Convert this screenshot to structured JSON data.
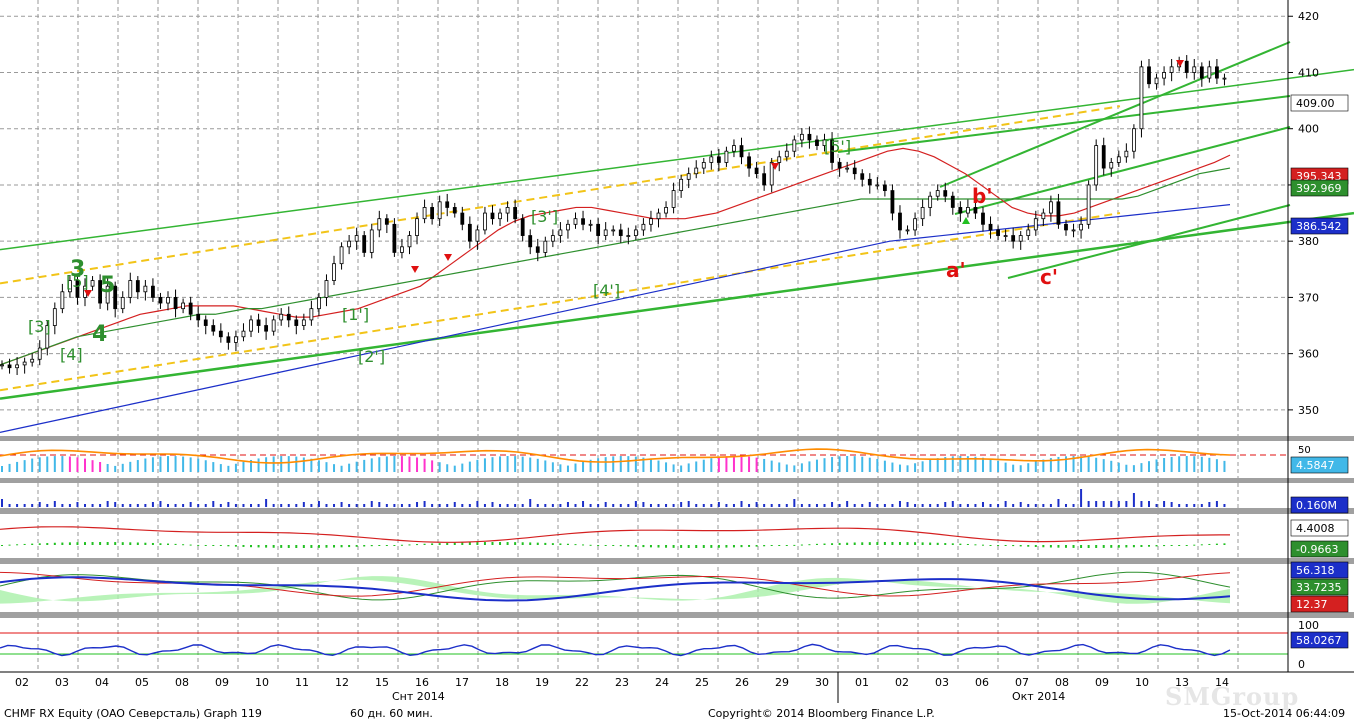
{
  "footer": {
    "instrument": "CHMF RX Equity (OAO Северсталь) Graph 119",
    "period": "60 дн. 60 мин.",
    "copyright": "Copyright© 2014 Bloomberg Finance L.P.",
    "datetime": "15-Oct-2014 06:44:09"
  },
  "watermark": "SMGroup",
  "colors": {
    "candle": "#000000",
    "ma_fast": "#d42020",
    "ma_mid": "#2e8f2e",
    "ma_slow": "#1c2fc9",
    "channel": "#33b533",
    "dashed": "#f2c418",
    "rsi_line": "#ff8c00",
    "rsi_hist": "#41b8e8",
    "rsi_hot": "#ff33cc",
    "volume": "#1c2fc9",
    "dmi_pos": "#a8f0a8",
    "dmi_neg": "#f4b6b6"
  },
  "chart_data": {
    "type": "candlestick",
    "panels": [
      {
        "name": "price",
        "ylim": [
          345,
          422
        ],
        "yticks": [
          350,
          360,
          370,
          380,
          390,
          400,
          410,
          420
        ],
        "last_value_tags": [
          {
            "value": "409.00",
            "bg": "#ffffff",
            "fg": "#000000"
          },
          {
            "value": "395.343",
            "bg": "#d42020",
            "fg": "#ffffff"
          },
          {
            "value": "392.969",
            "bg": "#2e8f2e",
            "fg": "#ffffff"
          },
          {
            "value": "386.542",
            "bg": "#1c2fc9",
            "fg": "#ffffff"
          }
        ],
        "close_path": [
          358,
          357.5,
          358,
          358.5,
          359,
          361,
          365,
          368,
          371,
          373,
          370,
          372,
          373,
          369,
          372,
          368,
          370,
          373,
          371,
          372,
          370,
          369,
          370,
          368,
          369,
          367,
          366,
          365,
          364,
          363,
          362,
          363,
          364,
          366,
          365,
          364,
          366,
          367,
          366,
          365,
          366,
          368,
          370,
          373,
          376,
          379,
          380,
          381,
          378,
          382,
          384,
          383,
          378,
          379,
          381,
          384,
          386,
          384,
          387,
          386,
          385,
          383,
          380,
          382,
          385,
          384,
          385,
          386,
          384,
          381,
          379,
          378,
          380,
          381,
          382,
          383,
          384,
          383,
          383,
          381,
          382,
          382,
          381,
          381,
          382,
          383,
          384,
          385,
          386,
          389,
          391,
          392,
          393,
          394,
          395,
          394,
          396,
          397,
          395,
          393,
          392,
          390,
          394,
          395,
          396,
          398,
          399,
          398,
          397,
          398,
          394,
          393,
          393,
          392,
          391,
          390,
          390,
          389,
          385,
          382,
          382,
          384,
          386,
          388,
          389,
          388,
          386,
          385,
          386,
          385,
          383,
          382,
          381,
          381,
          380,
          381,
          382,
          384,
          385,
          387,
          383,
          382,
          382,
          383,
          390,
          397,
          393,
          394,
          395,
          396,
          400,
          411,
          408,
          409,
          410,
          411,
          412,
          410,
          411,
          409,
          411,
          409,
          409
        ],
        "moving_averages": [
          {
            "name": "MA fast",
            "color": "#d42020",
            "values": [
              358,
              359,
              360,
              361,
              362,
              363,
              364,
              365,
              366,
              367,
              367.5,
              368,
              368.5,
              368.5,
              368.5,
              368.5,
              368,
              367.5,
              367,
              366.5,
              366.5,
              367,
              367.5,
              368,
              369,
              370,
              371,
              372,
              374,
              376,
              378,
              380,
              382,
              383.5,
              384.5,
              385,
              385.5,
              386,
              386,
              385.5,
              385,
              384.5,
              384,
              384,
              384,
              384.5,
              385,
              386,
              387,
              388,
              389,
              390,
              391,
              392,
              393,
              394,
              395,
              396,
              396.5,
              396,
              395,
              393.5,
              392,
              390,
              388,
              386,
              385,
              384.5,
              384.5,
              385,
              386,
              387,
              388,
              389,
              390,
              391,
              392,
              393,
              394,
              395.3
            ]
          },
          {
            "name": "MA mid",
            "color": "#2e8f2e",
            "values": [
              358,
              359,
              360,
              361,
              362,
              363,
              363.5,
              364,
              364.5,
              365,
              365.5,
              366,
              366.5,
              367,
              367,
              367.5,
              368,
              368,
              368.5,
              369,
              369.5,
              370,
              370.5,
              371,
              371.5,
              372,
              372.5,
              373,
              373.5,
              374,
              374.5,
              375,
              375.5,
              376,
              376.5,
              377,
              377.5,
              378,
              378.5,
              379,
              379.5,
              380,
              380.5,
              381,
              381.5,
              382,
              382.5,
              383,
              383.5,
              384,
              384.5,
              385,
              385.5,
              386,
              386.5,
              387,
              387.5,
              387.5,
              387.5,
              387.5,
              387.5,
              387.5,
              387.5,
              387.5,
              387.5,
              387.5,
              387.5,
              387.5,
              387.5,
              387.5,
              387.5,
              387.5,
              387.5,
              387.5,
              388,
              389,
              390,
              391,
              392,
              392.5,
              393
            ]
          },
          {
            "name": "MA slow",
            "color": "#1c2fc9",
            "values": [
              346,
              347,
              348,
              349,
              350,
              351,
              352,
              353,
              354,
              355,
              356,
              357,
              358,
              359,
              360,
              361,
              362,
              363,
              364,
              365,
              366,
              367,
              368,
              369,
              370,
              371,
              372,
              373,
              374,
              375,
              376,
              377,
              378,
              379,
              380,
              380.5,
              381,
              381.5,
              382,
              382.5,
              383,
              383.5,
              384,
              384.5,
              385,
              385.5,
              386,
              386.5
            ]
          }
        ],
        "trendlines": [
          {
            "name": "channel-upper",
            "from": [
              0,
              378.5
            ],
            "to": [
              1354,
              410.5
            ]
          },
          {
            "name": "channel-lower",
            "from": [
              0,
              352
            ],
            "to": [
              1354,
              385
            ]
          },
          {
            "name": "dashed-upper",
            "from": [
              0,
              372.5
            ],
            "to": [
              1120,
              404
            ]
          },
          {
            "name": "dashed-lower",
            "from": [
              0,
              353.5
            ],
            "to": [
              1120,
              385
            ]
          }
        ],
        "wave_labels": [
          {
            "text": "[3]",
            "color": "#2e8f2e",
            "style": "bracket"
          },
          {
            "text": "[4]",
            "color": "#2e8f2e",
            "style": "bracket"
          },
          {
            "text": "[5]",
            "color": "#2e8f2e",
            "style": "bracket"
          },
          {
            "text": "3",
            "color": "#2e8f2e",
            "style": "big"
          },
          {
            "text": "4",
            "color": "#2e8f2e",
            "style": "big"
          },
          {
            "text": "5",
            "color": "#2e8f2e",
            "style": "big"
          },
          {
            "text": "[1']",
            "color": "#2e8f2e",
            "style": "bracket"
          },
          {
            "text": "[2']",
            "color": "#2e8f2e",
            "style": "bracket"
          },
          {
            "text": "[3']",
            "color": "#2e8f2e",
            "style": "bracket"
          },
          {
            "text": "[4']",
            "color": "#2e8f2e",
            "style": "bracket"
          },
          {
            "text": "[5']",
            "color": "#2e8f2e",
            "style": "bracket"
          },
          {
            "text": "a'",
            "color": "#e01010",
            "style": "bold"
          },
          {
            "text": "b'",
            "color": "#e01010",
            "style": "bold"
          },
          {
            "text": "c'",
            "color": "#e01010",
            "style": "bold"
          }
        ]
      },
      {
        "name": "rsi",
        "tick_label": "50",
        "last_value": "4.5847",
        "value_bg": "#41b8e8"
      },
      {
        "name": "volume",
        "last_value": "0.160M",
        "value_bg": "#1c2fc9"
      },
      {
        "name": "macd",
        "values": [
          {
            "value": "4.4008",
            "bg": "#ffffff",
            "fg": "#000000"
          },
          {
            "value": "-0.9663",
            "bg": "#2e8f2e",
            "fg": "#ffffff"
          }
        ]
      },
      {
        "name": "dmi",
        "values": [
          {
            "value": "56.318",
            "bg": "#1c2fc9",
            "fg": "#ffffff"
          },
          {
            "value": "33.7235",
            "bg": "#2e8f2e",
            "fg": "#ffffff"
          },
          {
            "value": "12.37",
            "bg": "#d42020",
            "fg": "#ffffff"
          }
        ]
      },
      {
        "name": "stochastic",
        "yticks": [
          "100",
          "0"
        ],
        "last_value": "58.0267",
        "value_bg": "#1c2fc9"
      }
    ],
    "x_day_labels": [
      "02",
      "03",
      "04",
      "05",
      "08",
      "09",
      "10",
      "11",
      "12",
      "15",
      "16",
      "17",
      "18",
      "19",
      "22",
      "23",
      "24",
      "25",
      "26",
      "29",
      "30",
      "01",
      "02",
      "03",
      "06",
      "07",
      "08",
      "09",
      "10",
      "13",
      "14"
    ],
    "x_month_labels": [
      "Снт 2014",
      "Окт 2014"
    ]
  }
}
